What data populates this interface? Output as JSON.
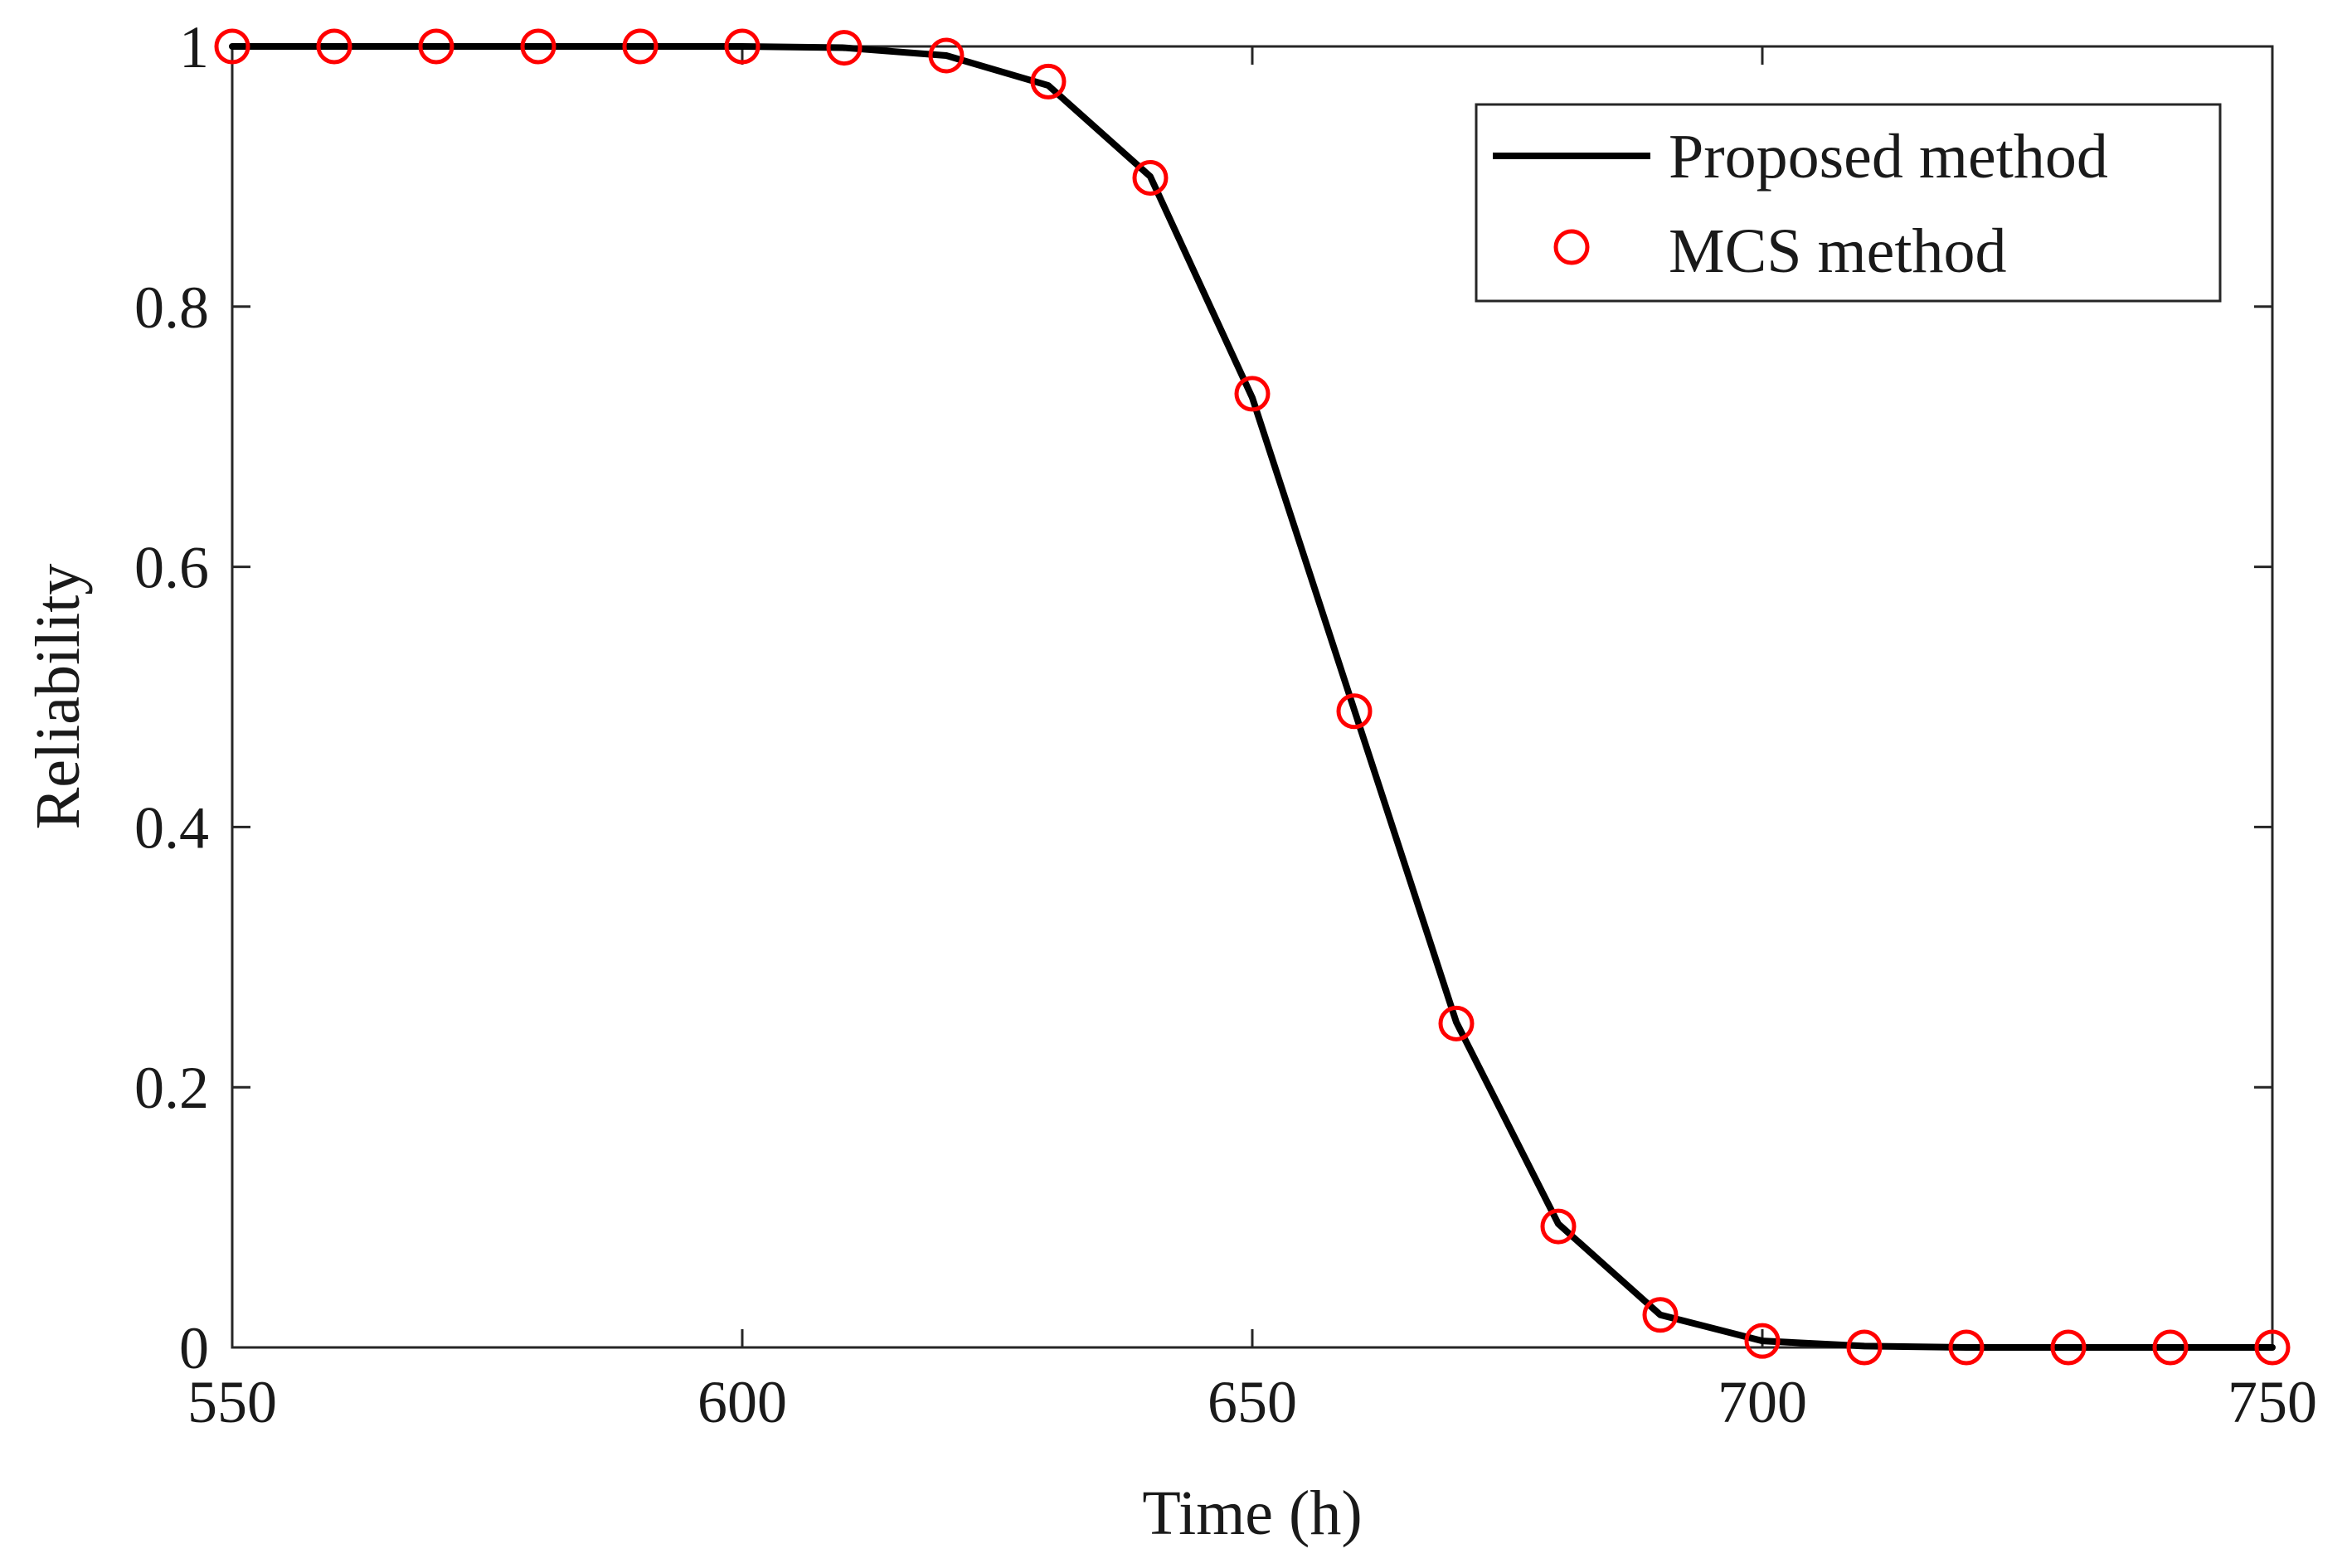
{
  "chart_data": {
    "type": "line",
    "title": "",
    "xlabel": "Time (h)",
    "ylabel": "Reliability",
    "xlim": [
      550,
      750
    ],
    "ylim": [
      0,
      1
    ],
    "xticks": [
      550,
      600,
      650,
      700,
      750
    ],
    "yticks": [
      0,
      0.2,
      0.4,
      0.6,
      0.8,
      1
    ],
    "ytick_labels": [
      "0",
      "0.2",
      "0.4",
      "0.6",
      "0.8",
      "1"
    ],
    "grid": false,
    "legend_position": "top-right",
    "series": [
      {
        "name": "Proposed method",
        "style": "line",
        "color": "#000000",
        "x": [
          550,
          560,
          570,
          580,
          590,
          600,
          610,
          620,
          630,
          640,
          650,
          660,
          670,
          680,
          690,
          700,
          710,
          720,
          730,
          740,
          750
        ],
        "values": [
          1.0,
          1.0,
          1.0,
          1.0,
          1.0,
          1.0,
          0.999,
          0.993,
          0.97,
          0.9,
          0.73,
          0.49,
          0.25,
          0.095,
          0.025,
          0.005,
          0.001,
          0.0,
          0.0,
          0.0,
          0.0
        ]
      },
      {
        "name": "MCS method",
        "style": "marker-circle",
        "color": "#ff0000",
        "x": [
          550,
          560,
          570,
          580,
          590,
          600,
          610,
          620,
          630,
          640,
          650,
          660,
          670,
          680,
          690,
          700,
          710,
          720,
          730,
          740,
          750
        ],
        "values": [
          1.0,
          1.0,
          1.0,
          1.0,
          1.0,
          1.0,
          0.999,
          0.993,
          0.973,
          0.899,
          0.733,
          0.489,
          0.249,
          0.093,
          0.025,
          0.005,
          0.0,
          0.0,
          0.0,
          0.0,
          0.0
        ]
      }
    ]
  }
}
